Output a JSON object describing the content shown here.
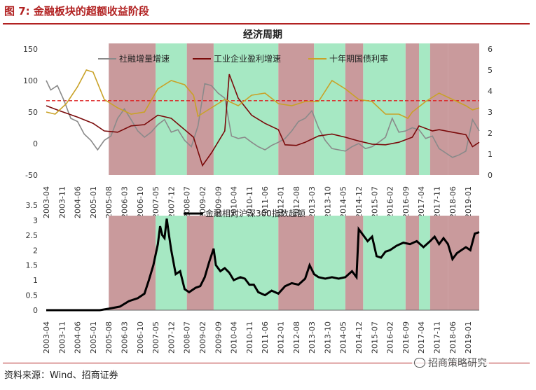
{
  "figure": {
    "title": "图 7:  金融板块的超额收益阶段",
    "source": "资料来源：Wind、招商证券",
    "watermark": "招商策略研究"
  },
  "colors": {
    "red_band": "#c99a9c",
    "green_band": "#a6e8c3",
    "social_financing": "#8a8a8a",
    "industrial_profit": "#7a0a0a",
    "bond_yield": "#c9a227",
    "dashed_line": "#dd2222",
    "relative_excess": "#000000"
  },
  "chart_data": [
    {
      "type": "line",
      "title": "经济周期",
      "x_tick_labels": [
        "2003-04",
        "2003-11",
        "2004-06",
        "2005-01",
        "2005-08",
        "2006-03",
        "2006-10",
        "2007-05",
        "2007-12",
        "2008-07",
        "2009-02",
        "2009-09",
        "2010-04",
        "2010-11",
        "2011-06",
        "2012-01",
        "2012-08",
        "2013-03",
        "2013-10",
        "2014-05",
        "2014-12",
        "2015-07",
        "2016-02",
        "2016-09",
        "2017-04",
        "2017-11",
        "2018-06",
        "2019-01"
      ],
      "ylim_left": [
        -50,
        150
      ],
      "yticks_left": [
        "150",
        "100",
        "50",
        "0",
        "-50"
      ],
      "ylim_right": [
        0,
        6
      ],
      "yticks_right": [
        "6",
        "5",
        "4",
        "3",
        "2",
        "1",
        "0"
      ],
      "reference_line_left": 68,
      "regimes": [
        {
          "start": "2005-08",
          "end": "2007-05",
          "kind": "red"
        },
        {
          "start": "2007-05",
          "end": "2008-07",
          "kind": "green"
        },
        {
          "start": "2008-07",
          "end": "2009-07",
          "kind": "red"
        },
        {
          "start": "2009-07",
          "end": "2011-12",
          "kind": "green"
        },
        {
          "start": "2011-12",
          "end": "2013-04",
          "kind": "red"
        },
        {
          "start": "2013-04",
          "end": "2014-06",
          "kind": "green"
        },
        {
          "start": "2014-06",
          "end": "2015-02",
          "kind": "red"
        },
        {
          "start": "2015-02",
          "end": "2016-09",
          "kind": "green"
        },
        {
          "start": "2016-09",
          "end": "2017-03",
          "kind": "red"
        },
        {
          "start": "2017-03",
          "end": "2017-08",
          "kind": "green"
        },
        {
          "start": "2017-08",
          "end": "2018-04",
          "kind": "red"
        },
        {
          "start": "2018-04",
          "end": "2019-06",
          "kind": "red"
        }
      ],
      "series": [
        {
          "name": "社融增量增速",
          "axis": "left",
          "points": [
            [
              "2003-04",
              100
            ],
            [
              "2003-06",
              85
            ],
            [
              "2003-09",
              92
            ],
            [
              "2003-12",
              68
            ],
            [
              "2004-03",
              40
            ],
            [
              "2004-06",
              35
            ],
            [
              "2004-09",
              15
            ],
            [
              "2004-12",
              5
            ],
            [
              "2005-03",
              -10
            ],
            [
              "2005-06",
              5
            ],
            [
              "2005-09",
              12
            ],
            [
              "2005-12",
              40
            ],
            [
              "2006-03",
              55
            ],
            [
              "2006-06",
              38
            ],
            [
              "2006-09",
              20
            ],
            [
              "2006-12",
              10
            ],
            [
              "2007-03",
              18
            ],
            [
              "2007-06",
              30
            ],
            [
              "2007-09",
              38
            ],
            [
              "2007-12",
              18
            ],
            [
              "2008-03",
              22
            ],
            [
              "2008-06",
              5
            ],
            [
              "2008-09",
              -5
            ],
            [
              "2008-12",
              28
            ],
            [
              "2009-03",
              95
            ],
            [
              "2009-06",
              92
            ],
            [
              "2009-09",
              80
            ],
            [
              "2009-12",
              72
            ],
            [
              "2010-03",
              12
            ],
            [
              "2010-06",
              8
            ],
            [
              "2010-09",
              10
            ],
            [
              "2010-12",
              2
            ],
            [
              "2011-03",
              -5
            ],
            [
              "2011-06",
              -10
            ],
            [
              "2011-09",
              -3
            ],
            [
              "2011-12",
              2
            ],
            [
              "2012-03",
              8
            ],
            [
              "2012-06",
              20
            ],
            [
              "2012-09",
              35
            ],
            [
              "2012-12",
              40
            ],
            [
              "2013-03",
              52
            ],
            [
              "2013-06",
              25
            ],
            [
              "2013-09",
              5
            ],
            [
              "2013-12",
              -8
            ],
            [
              "2014-03",
              -10
            ],
            [
              "2014-06",
              -12
            ],
            [
              "2014-09",
              -5
            ],
            [
              "2014-12",
              0
            ],
            [
              "2015-03",
              -8
            ],
            [
              "2015-06",
              -5
            ],
            [
              "2015-09",
              2
            ],
            [
              "2015-12",
              10
            ],
            [
              "2016-03",
              40
            ],
            [
              "2016-06",
              18
            ],
            [
              "2016-09",
              20
            ],
            [
              "2016-12",
              25
            ],
            [
              "2017-03",
              22
            ],
            [
              "2017-06",
              8
            ],
            [
              "2017-09",
              12
            ],
            [
              "2017-12",
              -8
            ],
            [
              "2018-03",
              -15
            ],
            [
              "2018-06",
              -22
            ],
            [
              "2018-09",
              -18
            ],
            [
              "2018-12",
              -12
            ],
            [
              "2019-03",
              38
            ],
            [
              "2019-06",
              20
            ]
          ]
        },
        {
          "name": "工业企业盈利增速",
          "axis": "left",
          "points": [
            [
              "2003-04",
              60
            ],
            [
              "2003-10",
              52
            ],
            [
              "2004-06",
              42
            ],
            [
              "2005-01",
              32
            ],
            [
              "2005-06",
              20
            ],
            [
              "2005-12",
              18
            ],
            [
              "2006-06",
              28
            ],
            [
              "2006-12",
              30
            ],
            [
              "2007-06",
              45
            ],
            [
              "2007-12",
              40
            ],
            [
              "2008-06",
              22
            ],
            [
              "2008-10",
              10
            ],
            [
              "2009-02",
              -35
            ],
            [
              "2009-06",
              -15
            ],
            [
              "2009-12",
              20
            ],
            [
              "2010-02",
              110
            ],
            [
              "2010-06",
              72
            ],
            [
              "2010-12",
              45
            ],
            [
              "2011-06",
              32
            ],
            [
              "2011-12",
              22
            ],
            [
              "2012-03",
              -2
            ],
            [
              "2012-08",
              -3
            ],
            [
              "2012-12",
              2
            ],
            [
              "2013-06",
              12
            ],
            [
              "2013-12",
              15
            ],
            [
              "2014-06",
              10
            ],
            [
              "2014-12",
              4
            ],
            [
              "2015-06",
              -1
            ],
            [
              "2015-12",
              -2
            ],
            [
              "2016-06",
              2
            ],
            [
              "2016-12",
              10
            ],
            [
              "2017-03",
              28
            ],
            [
              "2017-09",
              20
            ],
            [
              "2017-12",
              22
            ],
            [
              "2018-06",
              18
            ],
            [
              "2018-12",
              14
            ],
            [
              "2019-03",
              -5
            ],
            [
              "2019-06",
              2
            ]
          ]
        },
        {
          "name": "十年期国债利率",
          "axis": "right",
          "points": [
            [
              "2003-04",
              3.0
            ],
            [
              "2003-08",
              2.9
            ],
            [
              "2004-01",
              3.4
            ],
            [
              "2004-06",
              4.2
            ],
            [
              "2004-10",
              5.0
            ],
            [
              "2005-01",
              4.9
            ],
            [
              "2005-06",
              3.6
            ],
            [
              "2005-12",
              3.2
            ],
            [
              "2006-06",
              2.9
            ],
            [
              "2006-12",
              3.0
            ],
            [
              "2007-06",
              4.1
            ],
            [
              "2007-12",
              4.5
            ],
            [
              "2008-06",
              4.3
            ],
            [
              "2008-10",
              3.8
            ],
            [
              "2008-12",
              2.8
            ],
            [
              "2009-06",
              3.2
            ],
            [
              "2009-12",
              3.6
            ],
            [
              "2010-06",
              3.3
            ],
            [
              "2010-12",
              3.8
            ],
            [
              "2011-06",
              3.9
            ],
            [
              "2011-12",
              3.4
            ],
            [
              "2012-06",
              3.3
            ],
            [
              "2012-12",
              3.5
            ],
            [
              "2013-06",
              3.5
            ],
            [
              "2013-12",
              4.5
            ],
            [
              "2014-06",
              4.1
            ],
            [
              "2014-12",
              3.6
            ],
            [
              "2015-06",
              3.5
            ],
            [
              "2015-12",
              2.9
            ],
            [
              "2016-06",
              2.9
            ],
            [
              "2016-10",
              2.7
            ],
            [
              "2016-12",
              3.0
            ],
            [
              "2017-06",
              3.5
            ],
            [
              "2017-12",
              3.9
            ],
            [
              "2018-06",
              3.6
            ],
            [
              "2018-12",
              3.3
            ],
            [
              "2019-03",
              3.1
            ],
            [
              "2019-06",
              3.2
            ]
          ]
        }
      ]
    },
    {
      "type": "line",
      "x_tick_labels": [
        "2003-04",
        "2003-11",
        "2004-06",
        "2005-01",
        "2005-08",
        "2006-03",
        "2006-10",
        "2007-05",
        "2007-12",
        "2008-07",
        "2009-02",
        "2009-09",
        "2010-04",
        "2010-11",
        "2011-06",
        "2012-01",
        "2012-08",
        "2013-03",
        "2013-10",
        "2014-05",
        "2014-12",
        "2015-07",
        "2016-02",
        "2016-09",
        "2017-04",
        "2017-11",
        "2018-06",
        "2019-01"
      ],
      "ylim": [
        0,
        3.5
      ],
      "yticks": [
        "3.5",
        "3",
        "2.5",
        "2",
        "1.5",
        "1",
        "0.5",
        "0"
      ],
      "series": [
        {
          "name": "金融相对沪深300指数超额",
          "points": [
            [
              "2003-04",
              0
            ],
            [
              "2005-04",
              0
            ],
            [
              "2005-08",
              0.05
            ],
            [
              "2006-01",
              0.12
            ],
            [
              "2006-05",
              0.3
            ],
            [
              "2006-09",
              0.4
            ],
            [
              "2006-12",
              0.55
            ],
            [
              "2007-02",
              1.0
            ],
            [
              "2007-04",
              1.5
            ],
            [
              "2007-06",
              2.2
            ],
            [
              "2007-07",
              2.8
            ],
            [
              "2007-08",
              2.5
            ],
            [
              "2007-09",
              2.4
            ],
            [
              "2007-10",
              3.05
            ],
            [
              "2007-11",
              2.5
            ],
            [
              "2007-12",
              2.0
            ],
            [
              "2008-02",
              1.2
            ],
            [
              "2008-04",
              1.3
            ],
            [
              "2008-06",
              0.7
            ],
            [
              "2008-08",
              0.6
            ],
            [
              "2008-11",
              0.75
            ],
            [
              "2009-01",
              0.8
            ],
            [
              "2009-03",
              1.1
            ],
            [
              "2009-05",
              1.6
            ],
            [
              "2009-07",
              2.05
            ],
            [
              "2009-08",
              1.5
            ],
            [
              "2009-10",
              1.3
            ],
            [
              "2009-12",
              1.4
            ],
            [
              "2010-02",
              1.25
            ],
            [
              "2010-04",
              1.0
            ],
            [
              "2010-07",
              1.1
            ],
            [
              "2010-09",
              1.05
            ],
            [
              "2010-11",
              0.85
            ],
            [
              "2011-01",
              0.85
            ],
            [
              "2011-03",
              0.6
            ],
            [
              "2011-06",
              0.5
            ],
            [
              "2011-09",
              0.65
            ],
            [
              "2011-12",
              0.55
            ],
            [
              "2012-03",
              0.8
            ],
            [
              "2012-06",
              0.9
            ],
            [
              "2012-09",
              0.85
            ],
            [
              "2012-12",
              1.05
            ],
            [
              "2013-02",
              1.5
            ],
            [
              "2013-04",
              1.2
            ],
            [
              "2013-06",
              1.1
            ],
            [
              "2013-09",
              1.05
            ],
            [
              "2013-12",
              1.1
            ],
            [
              "2014-03",
              1.05
            ],
            [
              "2014-06",
              1.1
            ],
            [
              "2014-09",
              1.3
            ],
            [
              "2014-11",
              1.1
            ],
            [
              "2014-12",
              2.7
            ],
            [
              "2015-02",
              2.5
            ],
            [
              "2015-04",
              2.3
            ],
            [
              "2015-06",
              2.45
            ],
            [
              "2015-08",
              1.8
            ],
            [
              "2015-10",
              1.75
            ],
            [
              "2015-12",
              1.95
            ],
            [
              "2016-02",
              2.0
            ],
            [
              "2016-05",
              2.15
            ],
            [
              "2016-08",
              2.25
            ],
            [
              "2016-11",
              2.2
            ],
            [
              "2017-02",
              2.3
            ],
            [
              "2017-05",
              2.1
            ],
            [
              "2017-08",
              2.3
            ],
            [
              "2017-10",
              2.45
            ],
            [
              "2017-12",
              2.2
            ],
            [
              "2018-02",
              2.4
            ],
            [
              "2018-04",
              2.2
            ],
            [
              "2018-06",
              1.7
            ],
            [
              "2018-08",
              1.9
            ],
            [
              "2018-10",
              2.0
            ],
            [
              "2018-12",
              2.1
            ],
            [
              "2019-02",
              2.0
            ],
            [
              "2019-04",
              2.55
            ],
            [
              "2019-06",
              2.6
            ]
          ]
        }
      ]
    }
  ]
}
